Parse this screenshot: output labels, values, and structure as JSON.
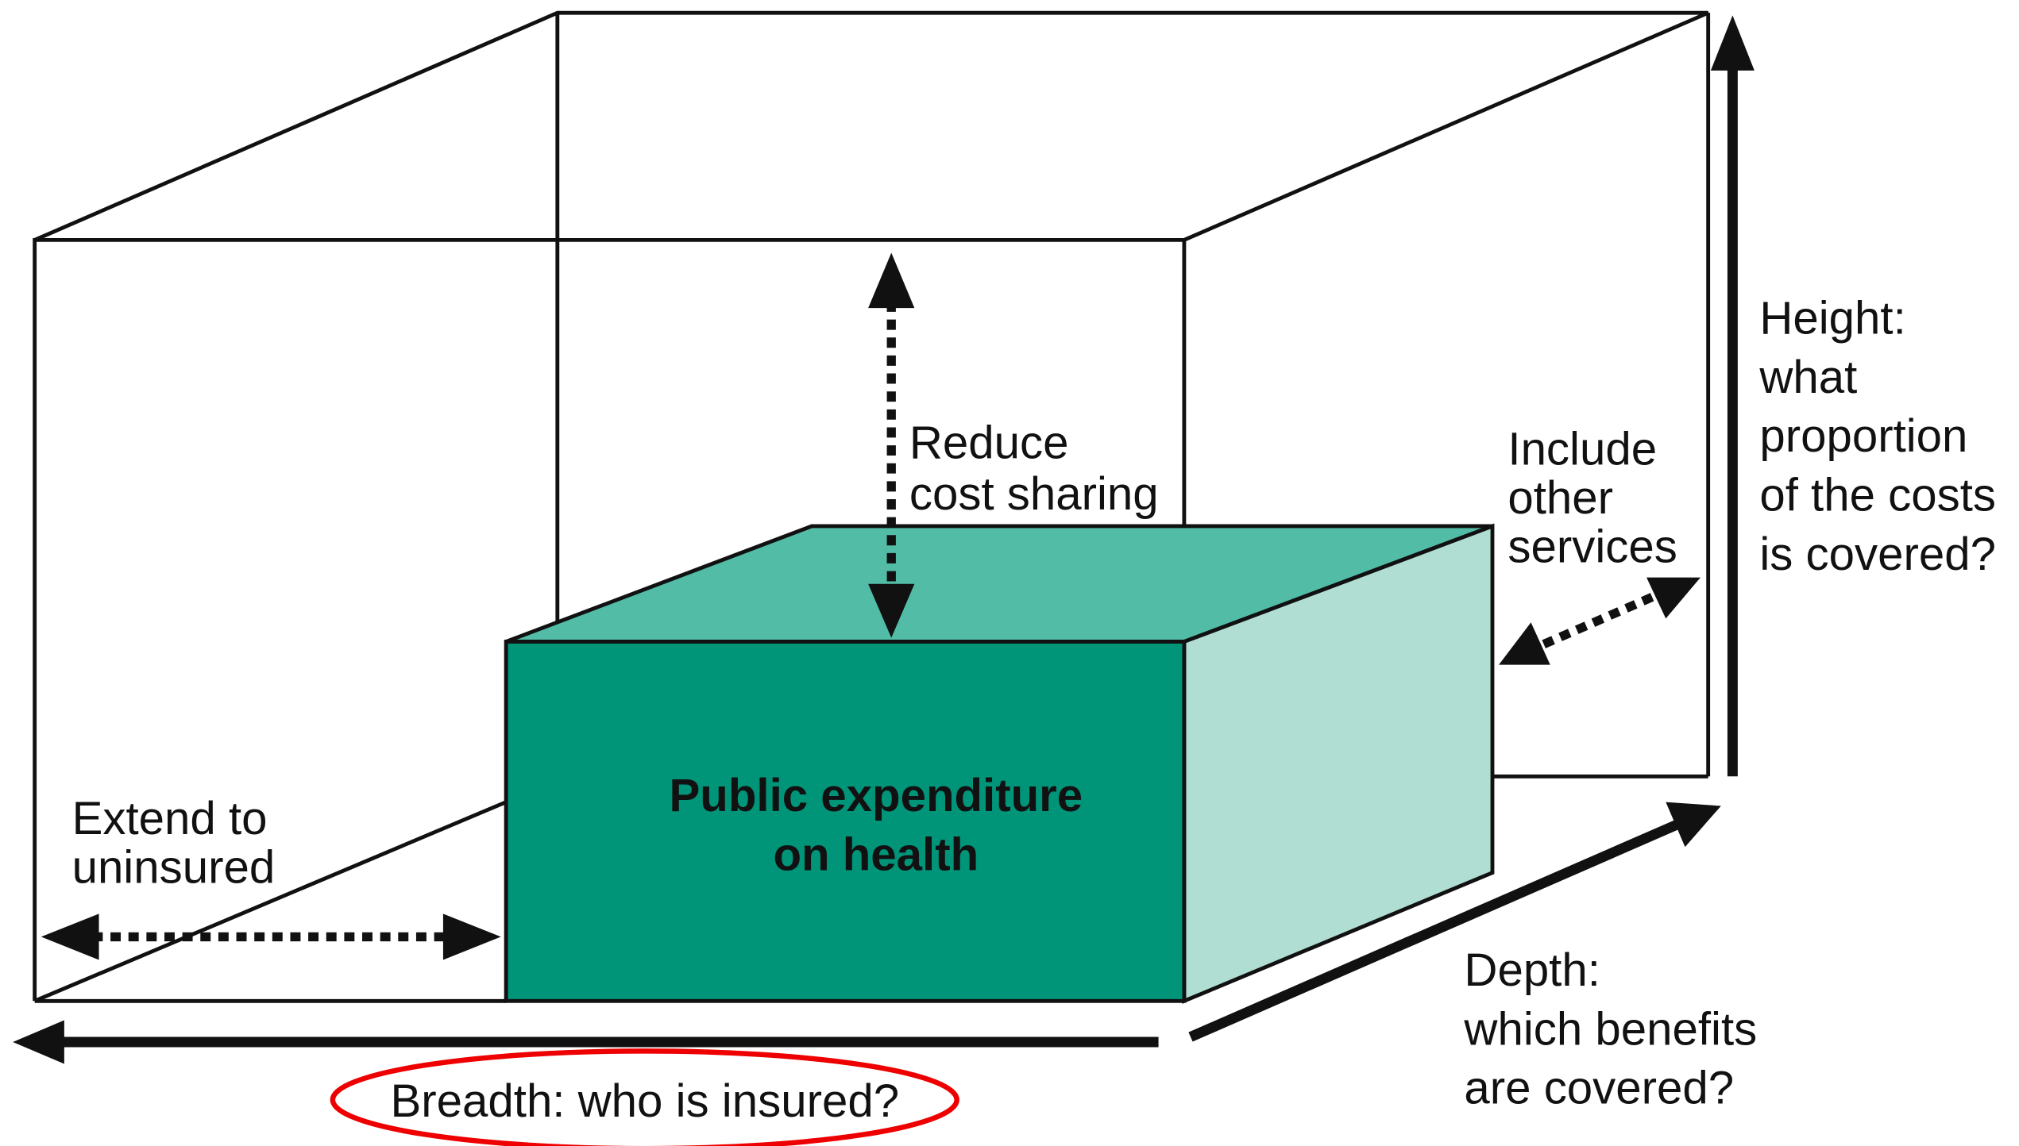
{
  "labels": {
    "center": [
      "Public expenditure",
      "on health"
    ],
    "reduce": [
      "Reduce",
      "cost sharing"
    ],
    "include": [
      "Include",
      "other",
      "services"
    ],
    "height": [
      "Height:",
      "what",
      "proportion",
      "of the costs",
      "is covered?"
    ],
    "depth": [
      "Depth:",
      "which benefits",
      "are covered?"
    ],
    "extend": [
      "Extend to",
      "uninsured"
    ],
    "breadth": "Breadth: who is insured?"
  }
}
